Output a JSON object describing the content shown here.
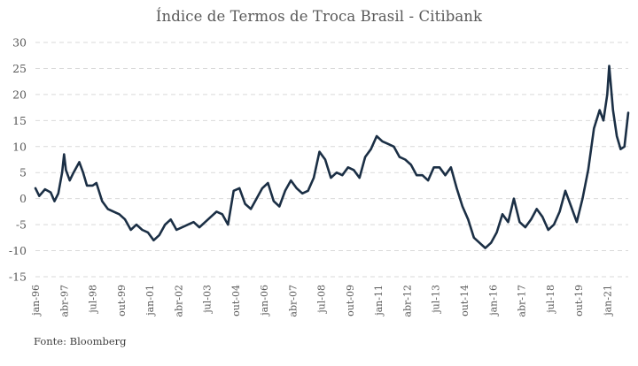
{
  "chart_data": {
    "type": "line",
    "title": "Índice de Termos de Troca Brasil - Citibank",
    "source": "Fonte: Bloomberg",
    "xlabel": "",
    "ylabel": "",
    "ylim": [
      -15,
      30
    ],
    "yticks": [
      -15,
      -10,
      -5,
      0,
      5,
      10,
      15,
      20,
      25,
      30
    ],
    "xlim": [
      "jan-96",
      "dez-21"
    ],
    "x_tick_labels": [
      "jan-96",
      "abr-97",
      "jul-98",
      "out-99",
      "jan-01",
      "abr-02",
      "jul-03",
      "out-04",
      "jan-06",
      "abr-07",
      "jul-08",
      "out-09",
      "jan-11",
      "abr-12",
      "jul-13",
      "out-14",
      "jan-16",
      "abr-17",
      "jul-18",
      "out-19",
      "jan-21"
    ],
    "grid": "horizontal dashed",
    "legend": "none",
    "colors": {
      "line": "#1b2f45",
      "grid": "#d9d9d9",
      "text": "#595959"
    },
    "series": [
      {
        "values": [
          [
            "jan-96",
            2.0
          ],
          [
            "mar-96",
            0.5
          ],
          [
            "jun-96",
            1.8
          ],
          [
            "set-96",
            1.2
          ],
          [
            "nov-96",
            -0.5
          ],
          [
            "jan-97",
            1.0
          ],
          [
            "mar-97",
            5.0
          ],
          [
            "abr-97",
            8.5
          ],
          [
            "mai-97",
            5.5
          ],
          [
            "jul-97",
            3.5
          ],
          [
            "set-97",
            5.0
          ],
          [
            "dez-97",
            7.0
          ],
          [
            "fev-98",
            5.0
          ],
          [
            "abr-98",
            2.5
          ],
          [
            "jul-98",
            2.5
          ],
          [
            "set-98",
            3.0
          ],
          [
            "dez-98",
            -0.5
          ],
          [
            "mar-99",
            -2.0
          ],
          [
            "jun-99",
            -2.5
          ],
          [
            "set-99",
            -3.0
          ],
          [
            "dez-99",
            -4.0
          ],
          [
            "mar-00",
            -6.0
          ],
          [
            "jun-00",
            -5.0
          ],
          [
            "set-00",
            -6.0
          ],
          [
            "dez-00",
            -6.5
          ],
          [
            "mar-01",
            -8.0
          ],
          [
            "jun-01",
            -7.0
          ],
          [
            "set-01",
            -5.0
          ],
          [
            "dez-01",
            -4.0
          ],
          [
            "mar-02",
            -6.0
          ],
          [
            "jun-02",
            -5.5
          ],
          [
            "set-02",
            -5.0
          ],
          [
            "dez-02",
            -4.5
          ],
          [
            "mar-03",
            -5.5
          ],
          [
            "jun-03",
            -4.5
          ],
          [
            "set-03",
            -3.5
          ],
          [
            "dez-03",
            -2.5
          ],
          [
            "mar-04",
            -3.0
          ],
          [
            "jun-04",
            -5.0
          ],
          [
            "set-04",
            1.5
          ],
          [
            "dez-04",
            2.0
          ],
          [
            "mar-05",
            -1.0
          ],
          [
            "jun-05",
            -2.0
          ],
          [
            "set-05",
            0.0
          ],
          [
            "dez-05",
            2.0
          ],
          [
            "mar-06",
            3.0
          ],
          [
            "jun-06",
            -0.5
          ],
          [
            "set-06",
            -1.5
          ],
          [
            "dez-06",
            1.5
          ],
          [
            "mar-07",
            3.5
          ],
          [
            "jun-07",
            2.0
          ],
          [
            "set-07",
            1.0
          ],
          [
            "dez-07",
            1.5
          ],
          [
            "mar-08",
            4.0
          ],
          [
            "jun-08",
            9.0
          ],
          [
            "set-08",
            7.5
          ],
          [
            "dez-08",
            4.0
          ],
          [
            "mar-09",
            5.0
          ],
          [
            "jun-09",
            4.5
          ],
          [
            "set-09",
            6.0
          ],
          [
            "dez-09",
            5.5
          ],
          [
            "mar-10",
            4.0
          ],
          [
            "jun-10",
            8.0
          ],
          [
            "set-10",
            9.5
          ],
          [
            "dez-10",
            12.0
          ],
          [
            "mar-11",
            11.0
          ],
          [
            "jun-11",
            10.5
          ],
          [
            "set-11",
            10.0
          ],
          [
            "dez-11",
            8.0
          ],
          [
            "mar-12",
            7.5
          ],
          [
            "jun-12",
            6.5
          ],
          [
            "set-12",
            4.5
          ],
          [
            "dez-12",
            4.5
          ],
          [
            "mar-13",
            3.5
          ],
          [
            "jun-13",
            6.0
          ],
          [
            "set-13",
            6.0
          ],
          [
            "dez-13",
            4.5
          ],
          [
            "mar-14",
            6.0
          ],
          [
            "jun-14",
            2.0
          ],
          [
            "set-14",
            -1.5
          ],
          [
            "dez-14",
            -4.0
          ],
          [
            "mar-15",
            -7.5
          ],
          [
            "jun-15",
            -8.5
          ],
          [
            "set-15",
            -9.5
          ],
          [
            "dez-15",
            -8.5
          ],
          [
            "mar-16",
            -6.5
          ],
          [
            "jun-16",
            -3.0
          ],
          [
            "set-16",
            -4.5
          ],
          [
            "dez-16",
            0.0
          ],
          [
            "mar-17",
            -4.5
          ],
          [
            "jun-17",
            -5.5
          ],
          [
            "set-17",
            -4.0
          ],
          [
            "dez-17",
            -2.0
          ],
          [
            "mar-18",
            -3.5
          ],
          [
            "jun-18",
            -6.0
          ],
          [
            "set-18",
            -5.0
          ],
          [
            "dez-18",
            -2.5
          ],
          [
            "mar-19",
            1.5
          ],
          [
            "jun-19",
            -1.5
          ],
          [
            "set-19",
            -4.5
          ],
          [
            "dez-19",
            0.0
          ],
          [
            "mar-20",
            5.5
          ],
          [
            "jun-20",
            13.5
          ],
          [
            "set-20",
            17.0
          ],
          [
            "nov-20",
            15.0
          ],
          [
            "jan-21",
            20.0
          ],
          [
            "fev-21",
            25.5
          ],
          [
            "abr-21",
            17.0
          ],
          [
            "jun-21",
            12.0
          ],
          [
            "ago-21",
            9.5
          ],
          [
            "out-21",
            10.0
          ],
          [
            "dez-21",
            16.5
          ]
        ]
      }
    ]
  }
}
